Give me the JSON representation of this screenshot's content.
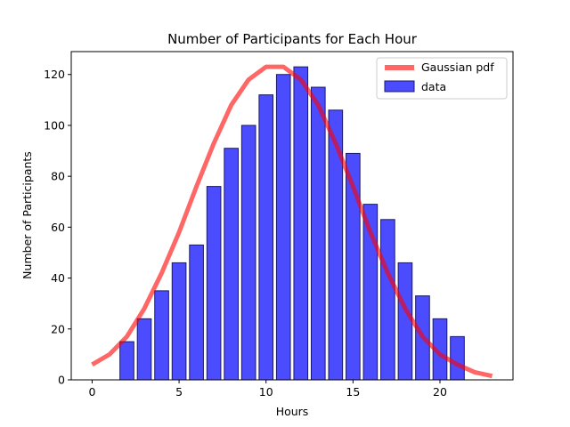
{
  "chart_data": {
    "type": "bar",
    "title": "Number of Participants for Each Hour",
    "xlabel": "Hours",
    "ylabel": "Number of Participants",
    "xlim": [
      -1.2,
      24.2
    ],
    "ylim": [
      0,
      129
    ],
    "xticks": [
      0,
      5,
      10,
      15,
      20
    ],
    "yticks": [
      0,
      20,
      40,
      60,
      80,
      100,
      120
    ],
    "legend_position": "top-right",
    "colors": {
      "bars": "#0000ff",
      "bar_edge": "#1a1a66",
      "curve": "#ff0000"
    },
    "series": [
      {
        "name": "data",
        "kind": "bar",
        "x": [
          0,
          1,
          2,
          3,
          4,
          5,
          6,
          7,
          8,
          9,
          10,
          11,
          12,
          13,
          14,
          15,
          16,
          17,
          18,
          19,
          20,
          21,
          22,
          23
        ],
        "values": [
          0,
          0,
          15,
          24,
          35,
          46,
          53,
          76,
          91,
          100,
          112,
          120,
          123,
          115,
          106,
          89,
          69,
          63,
          46,
          33,
          24,
          17,
          0,
          0
        ]
      },
      {
        "name": "Gaussian pdf",
        "kind": "line",
        "x": [
          0,
          1,
          2,
          3,
          4,
          5,
          6,
          7,
          8,
          9,
          10,
          11,
          12,
          13,
          14,
          15,
          16,
          17,
          18,
          19,
          20,
          21,
          22,
          23
        ],
        "values": [
          6,
          10,
          17,
          28,
          42,
          58,
          76,
          93,
          108,
          118,
          123,
          123,
          118,
          108,
          93,
          76,
          58,
          42,
          28,
          17,
          10,
          6,
          3,
          1.5
        ]
      }
    ]
  }
}
